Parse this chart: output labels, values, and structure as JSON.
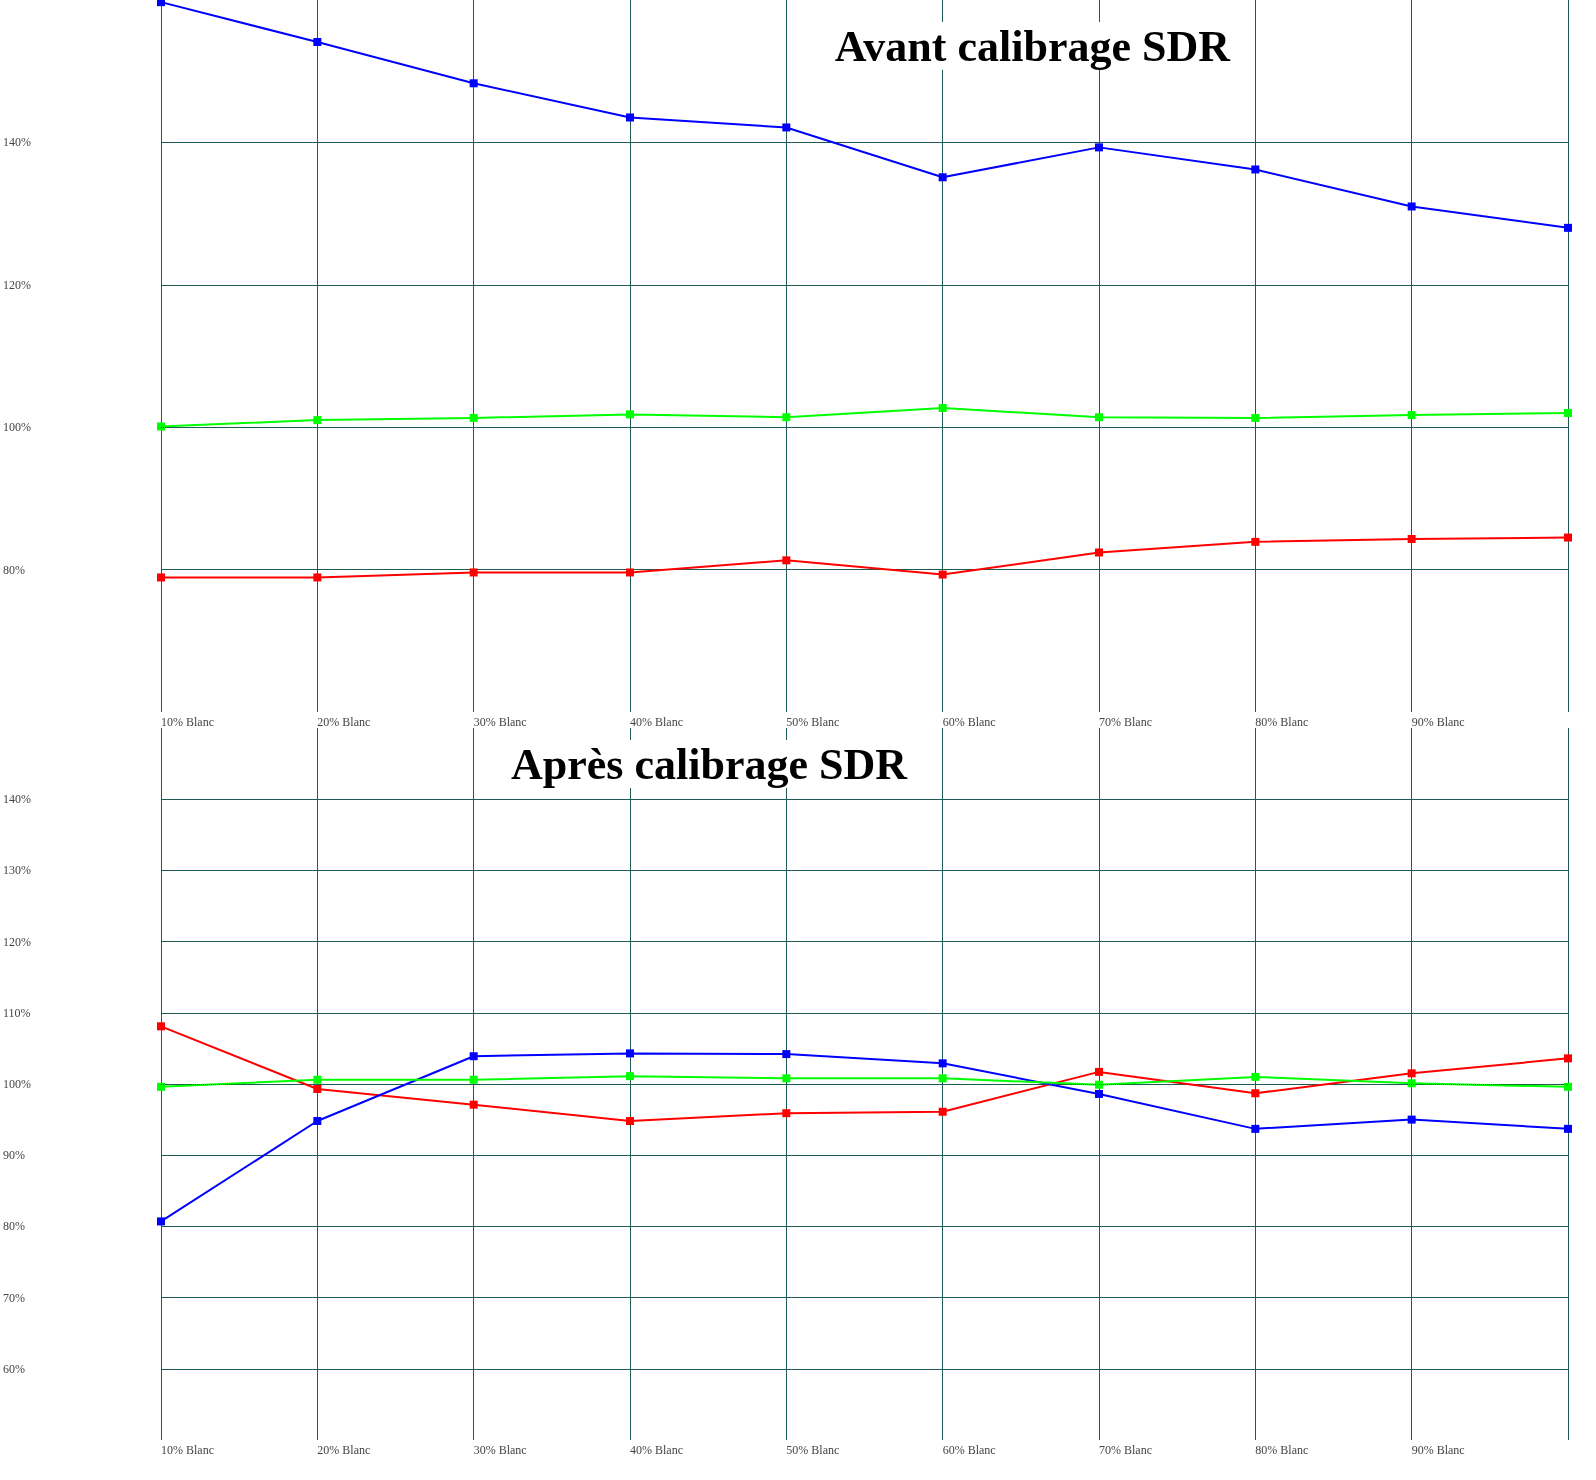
{
  "chart_data": [
    {
      "type": "line",
      "title": "Avant calibrage SDR",
      "categories": [
        "10% Blanc",
        "20% Blanc",
        "30% Blanc",
        "40% Blanc",
        "50% Blanc",
        "60% Blanc",
        "70% Blanc",
        "80% Blanc",
        "90% Blanc",
        null
      ],
      "series": [
        {
          "color": "#0000ff",
          "values": [
            159.7,
            154.1,
            148.3,
            143.5,
            142.1,
            135.1,
            139.3,
            136.2,
            131.0,
            128.0
          ]
        },
        {
          "color": "#00ff00",
          "values": [
            100.1,
            101.0,
            101.3,
            101.8,
            101.4,
            102.7,
            101.4,
            101.3,
            101.7,
            102.0
          ]
        },
        {
          "color": "#ff0000",
          "values": [
            78.9,
            78.9,
            79.6,
            79.6,
            81.3,
            79.3,
            82.4,
            83.9,
            84.3,
            84.5
          ]
        }
      ],
      "ylim": [
        60,
        160
      ],
      "yticks": [
        {
          "value": 80,
          "label": "80%"
        },
        {
          "value": 100,
          "label": "100%"
        },
        {
          "value": 120,
          "label": "120%"
        },
        {
          "value": 140,
          "label": "140%"
        }
      ],
      "ref_lines": [
        {
          "axis": "y",
          "value": 100,
          "color": "#1f5b55",
          "line_style": "dotted"
        }
      ],
      "grid": true,
      "marker": "square",
      "line_style": "solid"
    },
    {
      "type": "line",
      "title": "Après calibrage SDR",
      "categories": [
        "10% Blanc",
        "20% Blanc",
        "30% Blanc",
        "40% Blanc",
        "50% Blanc",
        "60% Blanc",
        "70% Blanc",
        "80% Blanc",
        "90% Blanc",
        null
      ],
      "series": [
        {
          "color": "#ff0000",
          "values": [
            108.1,
            99.3,
            97.1,
            94.8,
            95.9,
            96.1,
            101.7,
            98.7,
            101.5,
            103.6
          ]
        },
        {
          "color": "#0000ff",
          "values": [
            80.7,
            94.8,
            103.9,
            104.3,
            104.2,
            102.9,
            98.6,
            93.7,
            95.0,
            93.7
          ]
        },
        {
          "color": "#00ff00",
          "values": [
            99.6,
            100.6,
            100.6,
            101.1,
            100.8,
            100.8,
            99.9,
            101.0,
            100.1,
            99.6
          ]
        }
      ],
      "ylim": [
        50,
        150
      ],
      "yticks": [
        {
          "value": 60,
          "label": "60%"
        },
        {
          "value": 70,
          "label": "70%"
        },
        {
          "value": 80,
          "label": "80%"
        },
        {
          "value": 90,
          "label": "90%"
        },
        {
          "value": 100,
          "label": "100%"
        },
        {
          "value": 110,
          "label": "110%"
        },
        {
          "value": 120,
          "label": "120%"
        },
        {
          "value": 130,
          "label": "130%"
        },
        {
          "value": 140,
          "label": "140%"
        }
      ],
      "ref_lines": [
        {
          "axis": "y",
          "value": 100,
          "color": "#1f5b55",
          "line_style": "dotted"
        }
      ],
      "grid": true,
      "marker": "square",
      "line_style": "solid"
    }
  ]
}
